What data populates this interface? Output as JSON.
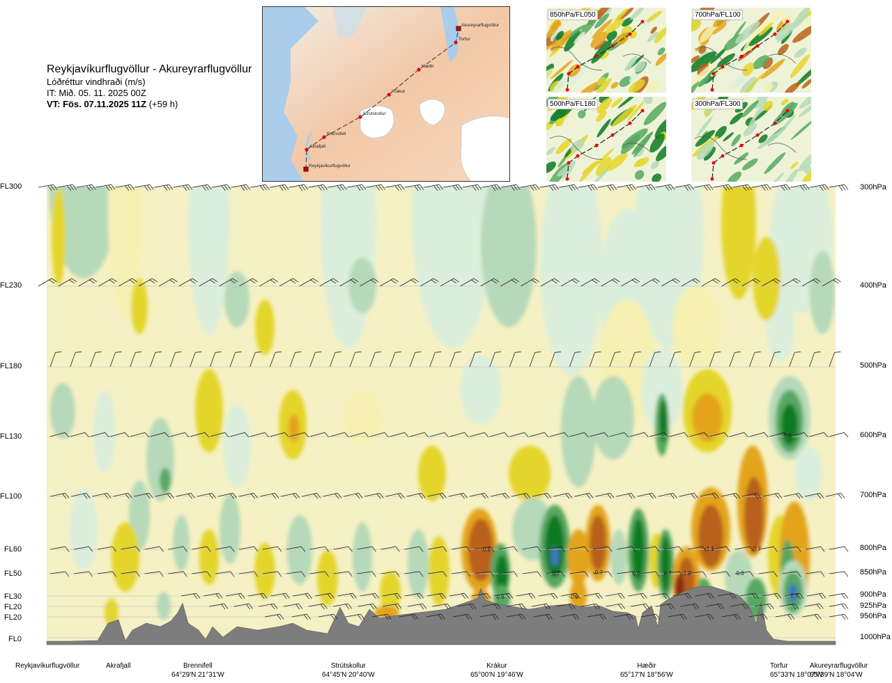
{
  "header": {
    "route": "Reykjavíkurflugvöllur - Akureyrarflugvöllur",
    "parameter": "Lóðréttur vindhraði (m/s)",
    "init_time": "IT: Mið. 05. 11. 2025 00Z",
    "valid_time": "VT: Fös. 07.11.2025 11Z",
    "lead": "(+59 h)"
  },
  "route_map": {
    "waypoints": [
      "Reykjavíkurflugvöllur",
      "Akrafjall",
      "Brennifell",
      "Strútskollur",
      "Krákur",
      "Hæðir",
      "Torfur",
      "Akureyrarflugvöllur"
    ]
  },
  "level_maps": [
    "850hPa/FL050",
    "700hPa/FL100",
    "500hPa/FL180",
    "300hPa/FL300"
  ],
  "axis": {
    "flight_levels": [
      "FL300",
      "FL230",
      "FL180",
      "FL130",
      "FL100",
      "FL60",
      "FL50",
      "FL30",
      "FL20",
      "FL20",
      "FL0"
    ],
    "pressure_levels": [
      "300hPa",
      "400hPa",
      "500hPa",
      "600hPa",
      "700hPa",
      "800hPa",
      "850hPa",
      "900hPa",
      "925hPa",
      "950hPa",
      "1000hPa"
    ]
  },
  "locations": [
    {
      "name": "Reykjavíkurflugvöllur",
      "coord": ""
    },
    {
      "name": "Akrafjall",
      "coord": ""
    },
    {
      "name": "Brennifell",
      "coord": "64°29'N 21°31'W"
    },
    {
      "name": "Strútskollur",
      "coord": "64°45'N 20°40'W"
    },
    {
      "name": "Krákur",
      "coord": "65°00'N 19°46'W"
    },
    {
      "name": "Hæðir",
      "coord": "65°17'N 18°56'W"
    },
    {
      "name": "Torfur",
      "coord": "65°33'N 18°07'W"
    },
    {
      "name": "Akureyrarflugvöllur",
      "coord": "65°39'N 18°04'W"
    }
  ],
  "chart_data": {
    "type": "heatmap",
    "title": "Reykjavíkurflugvöllur - Akureyrarflugvöllur",
    "subtitle": "Lóðréttur vindhraði (m/s)",
    "y_levels_hpa": [
      300,
      400,
      500,
      600,
      700,
      800,
      850,
      900,
      925,
      950,
      1000
    ],
    "annotations": [
      {
        "text": "-0.6",
        "location": "Krákur",
        "level_hpa": 800
      },
      {
        "text": "0.7",
        "location": "Krákur-Hæðir",
        "level_hpa": 850
      },
      {
        "text": "0.6",
        "location": "Krákur",
        "level_hpa": 900
      },
      {
        "text": "-0.6",
        "location": "Krákur-Hæðir",
        "level_hpa": 900
      },
      {
        "text": "-0.7",
        "location": "Krákur-Hæðir",
        "level_hpa": 850
      },
      {
        "text": "0.6",
        "location": "Hæðir",
        "level_hpa": 850
      },
      {
        "text": "0.7",
        "location": "Hæðir",
        "level_hpa": 850
      },
      {
        "text": "-1.2",
        "location": "Hæðir",
        "level_hpa": 850
      },
      {
        "text": "-1.1",
        "location": "Hæðir-Torfur",
        "level_hpa": 800
      },
      {
        "text": "-0.7",
        "location": "Hæðir-Torfur",
        "level_hpa": 800
      },
      {
        "text": "0.6",
        "location": "Hæðir-Torfur",
        "level_hpa": 850
      },
      {
        "text": "0.6",
        "location": "Torfur",
        "level_hpa": 600
      },
      {
        "text": "0.6",
        "location": "Torfur",
        "level_hpa": 900
      }
    ],
    "colors": {
      "strong_up": "#0a7a22",
      "moderate_up": "#57a862",
      "weak_up": "#b5d9b9",
      "faint_up": "#dcefdc",
      "faint_down": "#f6f1b3",
      "weak_down": "#e4d52c",
      "moderate_down": "#e3a41c",
      "strong_down": "#b8611a",
      "extreme_down": "#8a2b12",
      "terrain": "#7d7d7d"
    }
  }
}
